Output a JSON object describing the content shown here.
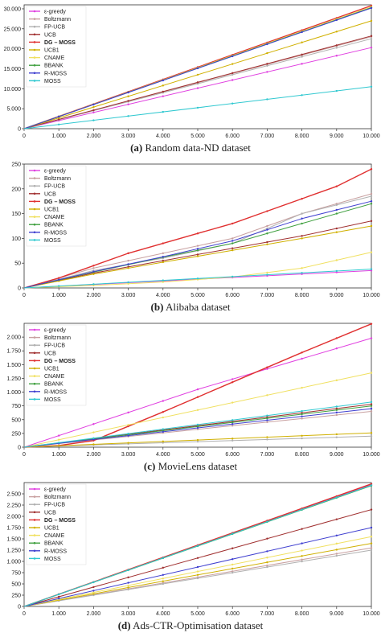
{
  "chart_data": [
    {
      "type": "line",
      "caption_letter": "(a)",
      "caption_text": "Random data-ND dataset",
      "xlim": [
        0,
        10000
      ],
      "ylim": [
        0,
        31000
      ],
      "x_ticks": [
        0,
        1000,
        2000,
        3000,
        4000,
        5000,
        6000,
        7000,
        8000,
        9000,
        10000
      ],
      "x_tick_labels": [
        "0",
        "1.000",
        "2.000",
        "3.000",
        "4.000",
        "5.000",
        "6.000",
        "7.000",
        "8.000",
        "9.000",
        "10.000"
      ],
      "y_ticks": [
        0,
        5000,
        10000,
        15000,
        20000,
        25000,
        30000
      ],
      "y_tick_labels": [
        "0",
        "5.000",
        "10.000",
        "15.000",
        "20.000",
        "25.000",
        "30.000"
      ],
      "legend_position": "top-left",
      "series": [
        {
          "name": "ε-greedy",
          "color": "#e040e0",
          "x": [
            0,
            10000
          ],
          "y": [
            0,
            20300
          ]
        },
        {
          "name": "Boltzmann",
          "color": "#c8a0a0",
          "x": [
            0,
            10000
          ],
          "y": [
            0,
            23000
          ]
        },
        {
          "name": "FP-UCB",
          "color": "#b0b0b0",
          "x": [
            0,
            10000
          ],
          "y": [
            0,
            22500
          ]
        },
        {
          "name": "UCB",
          "color": "#a03030",
          "x": [
            0,
            10000
          ],
          "y": [
            0,
            23200
          ]
        },
        {
          "name": "DG – MOSS",
          "color": "#e03030",
          "bold": true,
          "x": [
            0,
            10000
          ],
          "y": [
            0,
            30800
          ]
        },
        {
          "name": "UCB1",
          "color": "#d0b000",
          "x": [
            0,
            10000
          ],
          "y": [
            0,
            27000
          ]
        },
        {
          "name": "CNAME",
          "color": "#f0e060",
          "x": [
            0,
            10000
          ],
          "y": [
            0,
            30500
          ]
        },
        {
          "name": "BBANK",
          "color": "#40a040",
          "x": [
            0,
            10000
          ],
          "y": [
            0,
            30300
          ]
        },
        {
          "name": "R-MOSS",
          "color": "#4040d0",
          "x": [
            0,
            10000
          ],
          "y": [
            0,
            30200
          ]
        },
        {
          "name": "MOSS",
          "color": "#30c8d0",
          "x": [
            0,
            10000
          ],
          "y": [
            0,
            10500
          ]
        }
      ]
    },
    {
      "type": "line",
      "caption_letter": "(b)",
      "caption_text": "Alibaba dataset",
      "xlim": [
        0,
        10000
      ],
      "ylim": [
        0,
        250
      ],
      "x_ticks": [
        0,
        1000,
        2000,
        3000,
        4000,
        5000,
        6000,
        7000,
        8000,
        9000,
        10000
      ],
      "x_tick_labels": [
        "0",
        "1.000",
        "2.000",
        "3.000",
        "4.000",
        "5.000",
        "6.000",
        "7.000",
        "8.000",
        "9.000",
        "10.000"
      ],
      "y_ticks": [
        0,
        50,
        100,
        150,
        200,
        250
      ],
      "y_tick_labels": [
        "0",
        "50",
        "100",
        "150",
        "200",
        "250"
      ],
      "legend_position": "top-left",
      "series": [
        {
          "name": "ε-greedy",
          "color": "#e040e0",
          "x": [
            0,
            10000
          ],
          "y": [
            0,
            35
          ]
        },
        {
          "name": "Boltzmann",
          "color": "#c8a0a0",
          "x": [
            0,
            2000,
            4000,
            6000,
            8000,
            10000
          ],
          "y": [
            0,
            40,
            70,
            100,
            150,
            190
          ]
        },
        {
          "name": "FP-UCB",
          "color": "#b0b0b0",
          "x": [
            0,
            2000,
            4000,
            6000,
            8000,
            10000
          ],
          "y": [
            0,
            35,
            60,
            90,
            150,
            185
          ]
        },
        {
          "name": "UCB",
          "color": "#a03030",
          "x": [
            0,
            2000,
            4000,
            6000,
            8000,
            10000
          ],
          "y": [
            0,
            30,
            55,
            80,
            105,
            135
          ]
        },
        {
          "name": "DG – MOSS",
          "color": "#e03030",
          "bold": true,
          "x": [
            0,
            1000,
            2000,
            3000,
            4000,
            5000,
            6000,
            7000,
            8000,
            9000,
            10000
          ],
          "y": [
            0,
            20,
            45,
            70,
            90,
            110,
            130,
            155,
            180,
            205,
            240
          ]
        },
        {
          "name": "UCB1",
          "color": "#d0b000",
          "x": [
            0,
            2000,
            4000,
            6000,
            8000,
            10000
          ],
          "y": [
            0,
            28,
            52,
            76,
            100,
            125
          ]
        },
        {
          "name": "CNAME",
          "color": "#f0e060",
          "x": [
            0,
            2000,
            4000,
            6000,
            8000,
            10000
          ],
          "y": [
            0,
            5,
            12,
            22,
            40,
            72
          ]
        },
        {
          "name": "BBANK",
          "color": "#40a040",
          "x": [
            0,
            2000,
            4000,
            6000,
            8000,
            10000
          ],
          "y": [
            0,
            32,
            62,
            90,
            130,
            170
          ]
        },
        {
          "name": "R-MOSS",
          "color": "#4040d0",
          "x": [
            0,
            2000,
            4000,
            6000,
            8000,
            10000
          ],
          "y": [
            0,
            33,
            63,
            95,
            140,
            175
          ]
        },
        {
          "name": "MOSS",
          "color": "#30c8d0",
          "x": [
            0,
            10000
          ],
          "y": [
            0,
            38
          ]
        }
      ]
    },
    {
      "type": "line",
      "caption_letter": "(c)",
      "caption_text": "MovieLens dataset",
      "xlim": [
        0,
        10000
      ],
      "ylim": [
        0,
        2250
      ],
      "x_ticks": [
        0,
        1000,
        2000,
        3000,
        4000,
        5000,
        6000,
        7000,
        8000,
        9000,
        10000
      ],
      "x_tick_labels": [
        "0",
        "1.000",
        "2.000",
        "3.000",
        "4.000",
        "5.000",
        "6.000",
        "7.000",
        "8.000",
        "9.000",
        "10.000"
      ],
      "y_ticks": [
        0,
        250,
        500,
        750,
        1000,
        1250,
        1500,
        1750,
        2000
      ],
      "y_tick_labels": [
        "0",
        "250",
        "500",
        "750",
        "1.000",
        "1.250",
        "1.500",
        "1.750",
        "2.000"
      ],
      "legend_position": "top-left",
      "series": [
        {
          "name": "ε-greedy",
          "color": "#e040e0",
          "x": [
            0,
            5000,
            10000
          ],
          "y": [
            0,
            1050,
            1980
          ]
        },
        {
          "name": "Boltzmann",
          "color": "#c8a0a0",
          "x": [
            0,
            10000
          ],
          "y": [
            0,
            650
          ]
        },
        {
          "name": "FP-UCB",
          "color": "#b0b0b0",
          "x": [
            0,
            10000
          ],
          "y": [
            0,
            200
          ]
        },
        {
          "name": "UCB",
          "color": "#a03030",
          "x": [
            0,
            10000
          ],
          "y": [
            0,
            780
          ]
        },
        {
          "name": "DG – MOSS",
          "color": "#e03030",
          "bold": true,
          "x": [
            0,
            1000,
            2000,
            4000,
            6000,
            8000,
            10000
          ],
          "y": [
            0,
            30,
            120,
            640,
            1180,
            1720,
            2240
          ]
        },
        {
          "name": "UCB1",
          "color": "#d0b000",
          "x": [
            0,
            10000
          ],
          "y": [
            0,
            260
          ]
        },
        {
          "name": "CNAME",
          "color": "#f0e060",
          "x": [
            0,
            10000
          ],
          "y": [
            0,
            1350
          ]
        },
        {
          "name": "BBANK",
          "color": "#40a040",
          "x": [
            0,
            10000
          ],
          "y": [
            0,
            750
          ]
        },
        {
          "name": "R-MOSS",
          "color": "#4040d0",
          "x": [
            0,
            10000
          ],
          "y": [
            0,
            700
          ]
        },
        {
          "name": "MOSS",
          "color": "#30c8d0",
          "x": [
            0,
            10000
          ],
          "y": [
            0,
            820
          ]
        }
      ]
    },
    {
      "type": "line",
      "caption_letter": "(d)",
      "caption_text": "Ads-CTR-Optimisation dataset",
      "xlim": [
        0,
        10000
      ],
      "ylim": [
        0,
        2750
      ],
      "x_ticks": [
        0,
        1000,
        2000,
        3000,
        4000,
        5000,
        6000,
        7000,
        8000,
        9000,
        10000
      ],
      "x_tick_labels": [
        "0",
        "1.000",
        "2.000",
        "3.000",
        "4.000",
        "5.000",
        "6.000",
        "7.000",
        "8.000",
        "9.000",
        "10.000"
      ],
      "y_ticks": [
        0,
        250,
        500,
        750,
        1000,
        1250,
        1500,
        1750,
        2000,
        2250,
        2500
      ],
      "y_tick_labels": [
        "0",
        "250",
        "500",
        "750",
        "1.000",
        "1.250",
        "1.500",
        "1.750",
        "2.000",
        "2.250",
        "2.500"
      ],
      "legend_position": "top-left",
      "series": [
        {
          "name": "ε-greedy",
          "color": "#e040e0",
          "x": [
            0,
            10000
          ],
          "y": [
            0,
            2700
          ]
        },
        {
          "name": "Boltzmann",
          "color": "#c8a0a0",
          "x": [
            0,
            10000
          ],
          "y": [
            0,
            1300
          ]
        },
        {
          "name": "FP-UCB",
          "color": "#b0b0b0",
          "x": [
            0,
            10000
          ],
          "y": [
            0,
            1250
          ]
        },
        {
          "name": "UCB",
          "color": "#a03030",
          "x": [
            0,
            10000
          ],
          "y": [
            0,
            2150
          ]
        },
        {
          "name": "DG – MOSS",
          "color": "#e03030",
          "bold": true,
          "x": [
            0,
            10000
          ],
          "y": [
            0,
            2720
          ]
        },
        {
          "name": "UCB1",
          "color": "#d0b000",
          "x": [
            0,
            10000
          ],
          "y": [
            0,
            1400
          ]
        },
        {
          "name": "CNAME",
          "color": "#f0e060",
          "x": [
            0,
            10000
          ],
          "y": [
            0,
            1550
          ]
        },
        {
          "name": "BBANK",
          "color": "#40a040",
          "x": [
            0,
            10000
          ],
          "y": [
            0,
            2680
          ]
        },
        {
          "name": "R-MOSS",
          "color": "#4040d0",
          "x": [
            0,
            10000
          ],
          "y": [
            0,
            1750
          ]
        },
        {
          "name": "MOSS",
          "color": "#30c8d0",
          "x": [
            0,
            10000
          ],
          "y": [
            0,
            2690
          ]
        }
      ]
    }
  ]
}
